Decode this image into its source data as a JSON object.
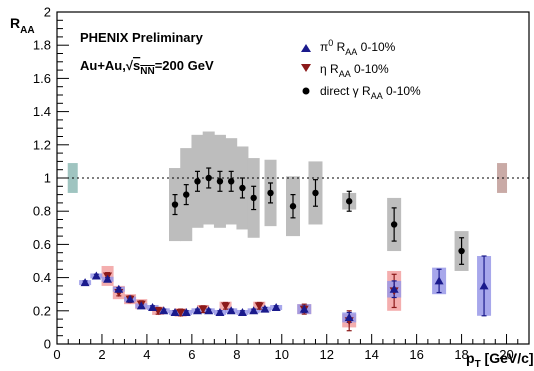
{
  "chart_data": {
    "type": "scatter",
    "xlabel": {
      "main": "p",
      "sub": "T",
      "suffix": " [GeV/c]"
    },
    "ylabel": {
      "main": "R",
      "sub": "AA"
    },
    "xlim": [
      0,
      21
    ],
    "ylim": [
      0,
      2
    ],
    "x_ticks": [
      0,
      2,
      4,
      6,
      8,
      10,
      12,
      14,
      16,
      18,
      20
    ],
    "y_ticks": [
      0,
      0.2,
      0.4,
      0.6,
      0.8,
      1,
      1.2,
      1.4,
      1.6,
      1.8,
      2
    ],
    "y_tick_labels": [
      "0",
      "0.2",
      "0.4",
      "0.6",
      "0.8",
      "1",
      "1.2",
      "1.4",
      "1.6",
      "1.8",
      "2"
    ],
    "x_tick_labels": [
      "0",
      "2",
      "4",
      "6",
      "8",
      "10",
      "12",
      "14",
      "16",
      "18",
      "20"
    ],
    "reference_line": {
      "y": 1,
      "style": "dotted"
    },
    "annotations": {
      "experiment": "PHENIX Preliminary",
      "system": {
        "prefix": "Au+Au,",
        "sqrt_sub": "NN",
        "suffix": "=200 GeV",
        "sqrt_symbol": "√",
        "s": "s"
      }
    },
    "normalization_boxes": [
      {
        "x": 0.7,
        "y_low": 0.91,
        "y_high": 1.09,
        "color": "#9fc4c0"
      },
      {
        "x": 19.8,
        "y_low": 0.91,
        "y_high": 1.09,
        "color": "#c9aaa6"
      }
    ],
    "series": [
      {
        "name": {
          "main": "π",
          "sup": "0",
          "rest": " R",
          "sub": "AA",
          "tail": " 0-10%"
        },
        "marker": "triangle-up",
        "color": "#1a1a8c",
        "box_color": "#9898e8",
        "points": [
          {
            "x": 1.25,
            "y": 0.37,
            "err": 0.01,
            "sys": 0.015
          },
          {
            "x": 1.75,
            "y": 0.41,
            "err": 0.01,
            "sys": 0.015
          },
          {
            "x": 2.25,
            "y": 0.39,
            "err": 0.01,
            "sys": 0.015
          },
          {
            "x": 2.75,
            "y": 0.33,
            "err": 0.01,
            "sys": 0.015
          },
          {
            "x": 3.25,
            "y": 0.27,
            "err": 0.01,
            "sys": 0.015
          },
          {
            "x": 3.75,
            "y": 0.23,
            "err": 0.01,
            "sys": 0.015
          },
          {
            "x": 4.25,
            "y": 0.22,
            "err": 0.01,
            "sys": 0.015
          },
          {
            "x": 4.75,
            "y": 0.2,
            "err": 0.01,
            "sys": 0.015
          },
          {
            "x": 5.25,
            "y": 0.19,
            "err": 0.01,
            "sys": 0.015
          },
          {
            "x": 5.75,
            "y": 0.19,
            "err": 0.01,
            "sys": 0.015
          },
          {
            "x": 6.25,
            "y": 0.2,
            "err": 0.01,
            "sys": 0.015
          },
          {
            "x": 6.75,
            "y": 0.2,
            "err": 0.01,
            "sys": 0.015
          },
          {
            "x": 7.25,
            "y": 0.19,
            "err": 0.01,
            "sys": 0.015
          },
          {
            "x": 7.75,
            "y": 0.2,
            "err": 0.01,
            "sys": 0.015
          },
          {
            "x": 8.25,
            "y": 0.19,
            "err": 0.01,
            "sys": 0.015
          },
          {
            "x": 8.75,
            "y": 0.2,
            "err": 0.01,
            "sys": 0.015
          },
          {
            "x": 9.25,
            "y": 0.21,
            "err": 0.01,
            "sys": 0.015
          },
          {
            "x": 9.75,
            "y": 0.22,
            "err": 0.01,
            "sys": 0.015
          },
          {
            "x": 11.0,
            "y": 0.21,
            "err": 0.02,
            "sys": 0.03
          },
          {
            "x": 13.0,
            "y": 0.16,
            "err": 0.03,
            "sys": 0.03
          },
          {
            "x": 15.0,
            "y": 0.33,
            "err": 0.05,
            "sys": 0.05
          },
          {
            "x": 17.0,
            "y": 0.38,
            "err": 0.07,
            "sys": 0.08
          },
          {
            "x": 19.0,
            "y": 0.35,
            "err": 0.18,
            "sys": 0.18
          }
        ]
      },
      {
        "name": {
          "main": "η",
          "rest": " R",
          "sub": "AA",
          "tail": " 0-10%"
        },
        "marker": "triangle-down",
        "color": "#8c1a1a",
        "box_color": "#f2a0a0",
        "points": [
          {
            "x": 2.25,
            "y": 0.41,
            "err": 0.02,
            "sys": 0.06
          },
          {
            "x": 2.75,
            "y": 0.31,
            "err": 0.02,
            "sys": 0.04
          },
          {
            "x": 3.25,
            "y": 0.27,
            "err": 0.02,
            "sys": 0.03
          },
          {
            "x": 3.75,
            "y": 0.24,
            "err": 0.02,
            "sys": 0.03
          },
          {
            "x": 4.5,
            "y": 0.2,
            "err": 0.02,
            "sys": 0.025
          },
          {
            "x": 5.5,
            "y": 0.19,
            "err": 0.02,
            "sys": 0.025
          },
          {
            "x": 6.5,
            "y": 0.21,
            "err": 0.02,
            "sys": 0.025
          },
          {
            "x": 7.5,
            "y": 0.23,
            "err": 0.02,
            "sys": 0.025
          },
          {
            "x": 9.0,
            "y": 0.23,
            "err": 0.02,
            "sys": 0.025
          },
          {
            "x": 11.0,
            "y": 0.21,
            "err": 0.03,
            "sys": 0.03
          },
          {
            "x": 13.0,
            "y": 0.14,
            "err": 0.06,
            "sys": 0.04
          },
          {
            "x": 15.0,
            "y": 0.32,
            "err": 0.1,
            "sys": 0.12
          }
        ]
      },
      {
        "name": {
          "main": "direct γ",
          "rest": " R",
          "sub": "AA",
          "tail": " 0-10%"
        },
        "marker": "circle",
        "color": "#000000",
        "box_color": "#bdbdbd",
        "points": [
          {
            "x": 5.25,
            "y": 0.84,
            "err": 0.06,
            "sys": 0.22
          },
          {
            "x": 5.75,
            "y": 0.9,
            "err": 0.06,
            "sys": 0.28
          },
          {
            "x": 6.25,
            "y": 0.98,
            "err": 0.06,
            "sys": 0.28
          },
          {
            "x": 6.75,
            "y": 1.0,
            "err": 0.06,
            "sys": 0.28
          },
          {
            "x": 7.25,
            "y": 0.98,
            "err": 0.06,
            "sys": 0.28
          },
          {
            "x": 7.75,
            "y": 0.98,
            "err": 0.06,
            "sys": 0.26
          },
          {
            "x": 8.25,
            "y": 0.94,
            "err": 0.06,
            "sys": 0.25
          },
          {
            "x": 8.75,
            "y": 0.88,
            "err": 0.07,
            "sys": 0.24
          },
          {
            "x": 9.5,
            "y": 0.91,
            "err": 0.06,
            "sys": 0.2
          },
          {
            "x": 10.5,
            "y": 0.83,
            "err": 0.07,
            "sys": 0.18
          },
          {
            "x": 11.5,
            "y": 0.91,
            "err": 0.08,
            "sys": 0.19
          },
          {
            "x": 13.0,
            "y": 0.86,
            "err": 0.06,
            "sys": 0.05
          },
          {
            "x": 15.0,
            "y": 0.72,
            "err": 0.1,
            "sys": 0.16
          },
          {
            "x": 18.0,
            "y": 0.56,
            "err": 0.08,
            "sys": 0.12
          }
        ]
      }
    ]
  }
}
